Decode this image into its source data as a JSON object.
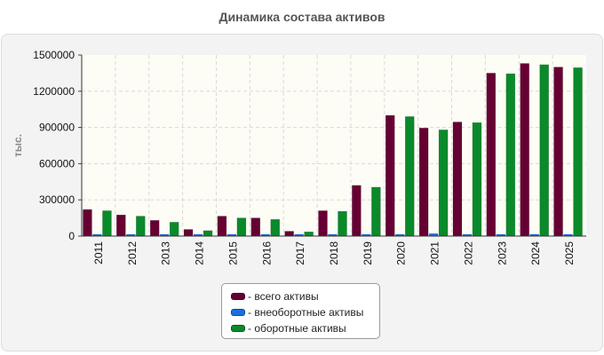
{
  "chart_data": {
    "type": "bar",
    "title": "Динамика состава активов",
    "ylabel": "тыс.",
    "xlabel": "",
    "ylim": [
      0,
      1500000
    ],
    "yticks": [
      0,
      300000,
      600000,
      900000,
      1200000,
      1500000
    ],
    "ytick_labels": [
      "0",
      "300000",
      "600000",
      "900000",
      "1200000",
      "1500000"
    ],
    "grid": true,
    "legend_position": "bottom-center",
    "categories": [
      "2011",
      "2012",
      "2013",
      "2014",
      "2015",
      "2016",
      "2017",
      "2018",
      "2019",
      "2020",
      "2021",
      "2022",
      "2023",
      "2024",
      "2025"
    ],
    "series": [
      {
        "name": "- всего активы",
        "color": "#660033",
        "values": [
          220000,
          175000,
          130000,
          55000,
          165000,
          150000,
          40000,
          210000,
          420000,
          1000000,
          895000,
          945000,
          1350000,
          1430000,
          1400000
        ]
      },
      {
        "name": "- внеоборотные активы",
        "color": "#1a6fe0",
        "values": [
          10000,
          12000,
          12000,
          12000,
          14000,
          12000,
          12000,
          14000,
          14000,
          10000,
          20000,
          10000,
          8000,
          15000,
          14000
        ]
      },
      {
        "name": "- оборотные активы",
        "color": "#0a8a2a",
        "values": [
          210000,
          165000,
          115000,
          45000,
          150000,
          138000,
          35000,
          205000,
          405000,
          990000,
          880000,
          940000,
          1345000,
          1420000,
          1395000
        ]
      }
    ]
  }
}
